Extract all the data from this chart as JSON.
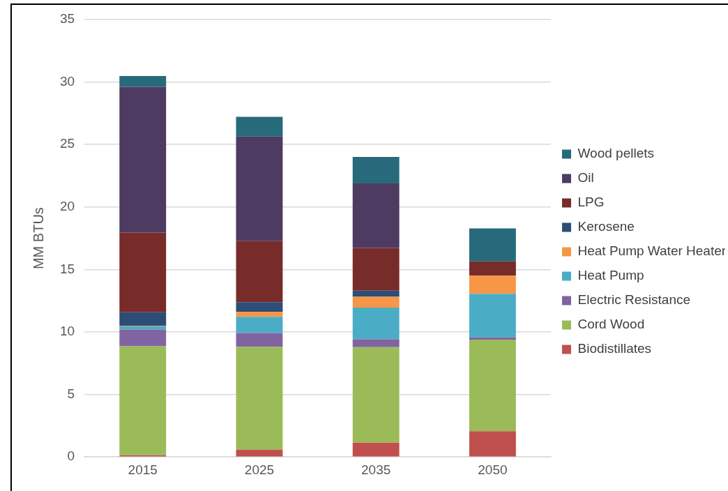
{
  "chart_data": {
    "type": "bar",
    "stacked": true,
    "ylabel": "MM BTUs",
    "categories": [
      "2015",
      "2025",
      "2035",
      "2050"
    ],
    "ylim": [
      0,
      35
    ],
    "yticks": [
      0,
      5,
      10,
      15,
      20,
      25,
      30,
      35
    ],
    "grid": "y",
    "legend": "right",
    "series": [
      {
        "name": "Biodistillates",
        "color": "#c0504d",
        "values": [
          0.14,
          0.59,
          1.14,
          2.06
        ]
      },
      {
        "name": "Cord Wood",
        "color": "#9bbb59",
        "values": [
          8.72,
          8.23,
          7.65,
          7.33
        ]
      },
      {
        "name": "Electric Resistance",
        "color": "#8064a2",
        "values": [
          1.32,
          1.1,
          0.63,
          0.18
        ]
      },
      {
        "name": "Heat Pump",
        "color": "#4bacc6",
        "values": [
          0.27,
          1.29,
          2.53,
          3.48
        ]
      },
      {
        "name": "Heat Pump Water Heater",
        "color": "#f79646",
        "values": [
          0.04,
          0.4,
          0.87,
          1.46
        ]
      },
      {
        "name": "Kerosene",
        "color": "#2c4d75",
        "values": [
          1.08,
          0.78,
          0.48,
          0
        ]
      },
      {
        "name": "LPG",
        "color": "#772c2a",
        "values": [
          6.38,
          4.88,
          3.43,
          1.14
        ]
      },
      {
        "name": "Oil",
        "color": "#4d3b62",
        "values": [
          11.67,
          8.37,
          5.15,
          0
        ]
      },
      {
        "name": "Wood pellets",
        "color": "#276a7c",
        "values": [
          0.86,
          1.58,
          2.12,
          2.63
        ]
      }
    ]
  }
}
